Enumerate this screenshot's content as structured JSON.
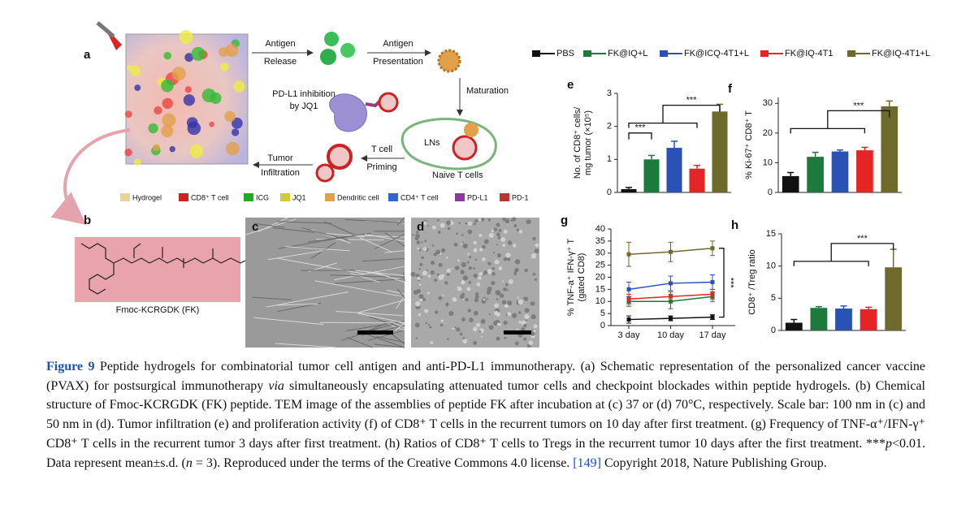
{
  "schematic": {
    "label": "a",
    "antigen_release": [
      "Antigen",
      "Release"
    ],
    "antigen_presentation": [
      "Antigen",
      "Presentation"
    ],
    "maturation": "Maturation",
    "pd_l1_inhibition": [
      "PD-L1 inhibition",
      "by JQ1"
    ],
    "lns": "LNs",
    "naive_t_cells": "Naive T cells",
    "t_cell_priming": [
      "T cell",
      "Priming"
    ],
    "tumor_infiltration": [
      "Tumor",
      "Infiltration"
    ],
    "legend": [
      "Hydrogel",
      "CD8⁺ T cell",
      "ICG",
      "JQ1",
      "Dendritic cell",
      "CD4⁺ T cell",
      "PD-L1",
      "PD-1"
    ]
  },
  "structure": {
    "label": "b",
    "name": "Fmoc-KCRGDK (FK)"
  },
  "tem": [
    {
      "label": "c"
    },
    {
      "label": "d"
    }
  ],
  "legend": [
    {
      "name": "PBS",
      "color": "#111111"
    },
    {
      "name": "FK@IQ+L",
      "color": "#1b7a3c"
    },
    {
      "name": "FK@ICQ-4T1+L",
      "color": "#2a52b4"
    },
    {
      "name": "FK@IQ-4T1",
      "color": "#e52525"
    },
    {
      "name": "FK@IQ-4T1+L",
      "color": "#6e6a2c"
    }
  ],
  "chart_data": [
    {
      "type": "bar",
      "label": "e",
      "ylabel": [
        "No. of CD8⁺ cells/",
        "mg tumor (×10⁵)"
      ],
      "values": [
        0.1,
        1.0,
        1.35,
        0.72,
        2.45
      ],
      "errors": [
        0.05,
        0.12,
        0.2,
        0.1,
        0.22
      ],
      "ylim": [
        0,
        3
      ],
      "yticks": [
        0,
        1,
        2,
        3
      ],
      "annotations": [
        "***",
        "***"
      ]
    },
    {
      "type": "bar",
      "label": "f",
      "ylabel": [
        "% Ki-67⁺ CD8⁺ T"
      ],
      "values": [
        5.5,
        12,
        13.8,
        14.2,
        29
      ],
      "errors": [
        1.2,
        1.5,
        0.5,
        1,
        1.8
      ],
      "ylim": [
        0,
        32
      ],
      "yticks": [
        0,
        10,
        20,
        30
      ],
      "annotations": [
        "***"
      ]
    },
    {
      "type": "line",
      "label": "g",
      "ylabel": [
        "% TNF-a⁺ IFN-γ⁺ T",
        "(gated CD8)"
      ],
      "categories": [
        "3 day",
        "10 day",
        "17 day"
      ],
      "series": [
        {
          "values": [
            2.5,
            3,
            3.5
          ],
          "errors": [
            1.5,
            1,
            1
          ]
        },
        {
          "values": [
            10,
            10,
            12
          ],
          "errors": [
            2,
            3,
            2
          ]
        },
        {
          "values": [
            15,
            17.5,
            18
          ],
          "errors": [
            3,
            3,
            3
          ]
        },
        {
          "values": [
            11,
            12,
            13
          ],
          "errors": [
            2,
            2,
            2
          ]
        },
        {
          "values": [
            29.5,
            30.5,
            32
          ],
          "errors": [
            5,
            4,
            3
          ]
        }
      ],
      "ylim": [
        0,
        40
      ],
      "yticks": [
        0,
        5,
        10,
        15,
        20,
        25,
        30,
        35,
        40
      ],
      "annotations": [
        "***"
      ]
    },
    {
      "type": "bar",
      "label": "h",
      "ylabel": [
        "CD8⁺ /Treg ratio"
      ],
      "values": [
        1.2,
        3.5,
        3.4,
        3.3,
        9.8
      ],
      "errors": [
        0.5,
        0.2,
        0.4,
        0.3,
        2.8
      ],
      "ylim": [
        0,
        15
      ],
      "yticks": [
        0,
        5,
        10,
        15
      ],
      "annotations": [
        "***"
      ]
    }
  ],
  "caption": {
    "segments": [
      {
        "text": "Figure 9",
        "style": "label"
      },
      {
        "text": " Peptide hydrogels for combinatorial tumor cell antigen and anti-PD-L1 immunotherapy. (a) Schematic representation of the personalized cancer vaccine (PVAX) for postsurgical immunotherapy "
      },
      {
        "text": "via",
        "style": "italic"
      },
      {
        "text": " simultaneously encapsulating attenuated tumor cells and checkpoint blockades within peptide hydrogels. (b) Chemical structure of Fmoc-KCRGDK (FK) peptide. TEM image of the assemblies of peptide FK after incubation at (c) 37 or (d) 70°C, respectively. Scale bar: 100 nm in (c) and 50 nm in (d). Tumor infiltration (e) and proliferation activity (f) of CD8⁺ T cells in the recurrent tumors on 10 day after first treatment. (g) Frequency of TNF-α⁺/IFN-γ⁺ CD8⁺ T cells in the recurrent tumor 3 days after first treatment. (h) Ratios of CD8⁺ T cells to Tregs in the recurrent tumor 10 days after the first treatment. ***"
      },
      {
        "text": "p",
        "style": "italic"
      },
      {
        "text": "<0.01. Data represent mean±s.d. ("
      },
      {
        "text": "n",
        "style": "italic"
      },
      {
        "text": " = 3). Reproduced under the terms of the Creative Commons 4.0 license. "
      },
      {
        "text": "[149]",
        "style": "ref"
      },
      {
        "text": " Copyright 2018, Nature Publishing Group."
      }
    ]
  }
}
